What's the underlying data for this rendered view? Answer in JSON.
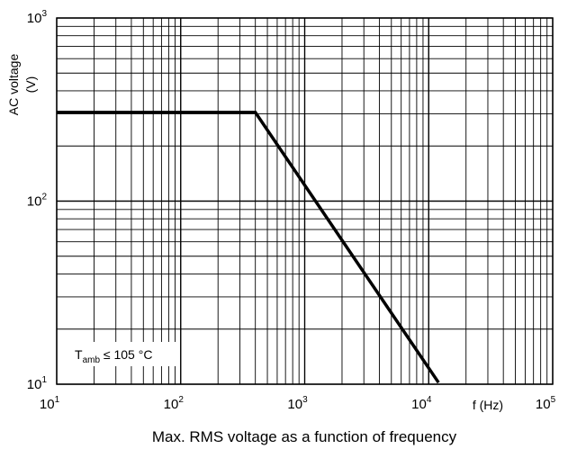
{
  "chart_data": {
    "type": "line",
    "title": "Max. RMS voltage as a function of frequency",
    "xlabel": "f (Hz)",
    "ylabel_line1": "AC voltage",
    "ylabel_line2": "(V)",
    "xscale": "log",
    "yscale": "log",
    "xlim": [
      10,
      100000
    ],
    "ylim": [
      10,
      1000
    ],
    "grid": true,
    "x_ticks": [
      {
        "base": "10",
        "exp": "1"
      },
      {
        "base": "10",
        "exp": "2"
      },
      {
        "base": "10",
        "exp": "3"
      },
      {
        "base": "10",
        "exp": "4"
      },
      {
        "base": "10",
        "exp": "5"
      }
    ],
    "y_ticks": [
      {
        "base": "10",
        "exp": "1"
      },
      {
        "base": "10",
        "exp": "2"
      },
      {
        "base": "10",
        "exp": "3"
      }
    ],
    "annotation": {
      "prefix": "T",
      "sub": "amb",
      "suffix": " ≤ 105 °C"
    },
    "series": [
      {
        "x": [
          10,
          400,
          12000
        ],
        "y": [
          305,
          305,
          10.2
        ]
      }
    ]
  }
}
